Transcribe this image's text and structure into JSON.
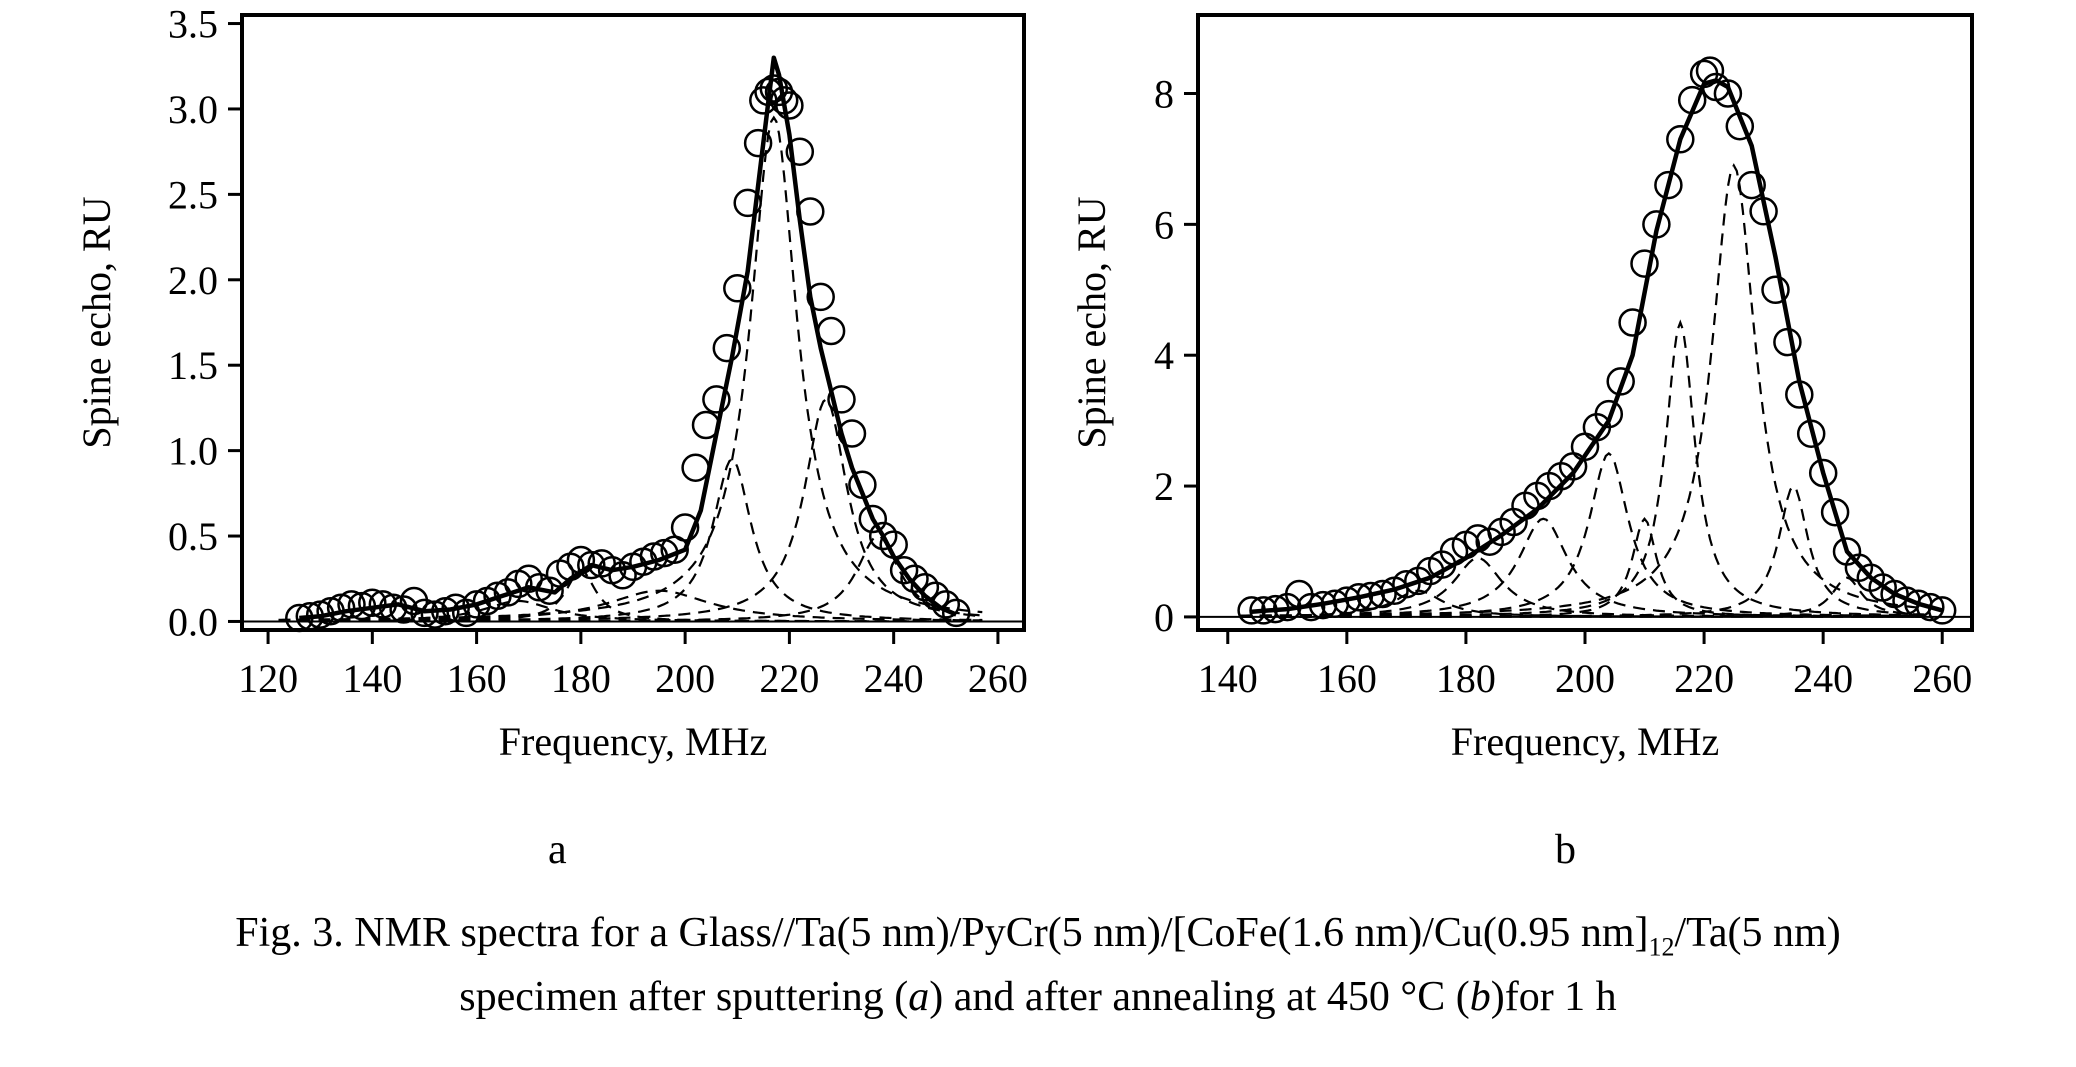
{
  "chart_data": [
    {
      "type": "scatter",
      "panel_label": "a",
      "xlabel": "Frequency, MHz",
      "ylabel": "Spine echo, RU",
      "xlim": [
        115,
        265
      ],
      "ylim": [
        -0.05,
        3.55
      ],
      "xticks": [
        120,
        140,
        160,
        180,
        200,
        220,
        240,
        260
      ],
      "yticks": [
        0.0,
        0.5,
        1.0,
        1.5,
        2.0,
        2.5,
        3.0,
        3.5
      ],
      "ytick_labels": [
        "0.0",
        "0.5",
        "1.0",
        "1.5",
        "2.0",
        "2.5",
        "3.0",
        "3.5"
      ],
      "grid": false,
      "points": {
        "marker": "open-circle",
        "x": [
          126,
          128,
          130,
          132,
          134,
          136,
          138,
          140,
          142,
          144,
          146,
          148,
          150,
          152,
          154,
          156,
          158,
          160,
          162,
          164,
          166,
          168,
          170,
          172,
          174,
          176,
          178,
          180,
          182,
          184,
          186,
          188,
          190,
          192,
          194,
          196,
          198,
          200,
          202,
          204,
          206,
          208,
          210,
          212,
          214,
          215,
          216,
          217,
          218,
          219,
          220,
          222,
          224,
          226,
          228,
          230,
          232,
          234,
          236,
          238,
          240,
          242,
          244,
          246,
          248,
          250,
          252
        ],
        "y": [
          0.02,
          0.03,
          0.04,
          0.06,
          0.08,
          0.1,
          0.09,
          0.11,
          0.1,
          0.08,
          0.07,
          0.12,
          0.05,
          0.04,
          0.06,
          0.08,
          0.05,
          0.1,
          0.12,
          0.15,
          0.17,
          0.22,
          0.25,
          0.2,
          0.18,
          0.28,
          0.32,
          0.36,
          0.33,
          0.34,
          0.3,
          0.27,
          0.32,
          0.35,
          0.38,
          0.4,
          0.42,
          0.55,
          0.9,
          1.15,
          1.3,
          1.6,
          1.95,
          2.45,
          2.8,
          3.05,
          3.1,
          3.12,
          3.1,
          3.05,
          3.02,
          2.75,
          2.4,
          1.9,
          1.7,
          1.3,
          1.1,
          0.8,
          0.6,
          0.5,
          0.45,
          0.3,
          0.25,
          0.2,
          0.15,
          0.1,
          0.05
        ]
      },
      "fit_line": {
        "style": "solid",
        "x": [
          126,
          130,
          135,
          140,
          145,
          150,
          155,
          160,
          165,
          170,
          175,
          178,
          182,
          186,
          190,
          195,
          200,
          203,
          206,
          209,
          212,
          214,
          216,
          217,
          218,
          220,
          222,
          224,
          226,
          228,
          230,
          232,
          234,
          236,
          238,
          240,
          243,
          246,
          249,
          252
        ],
        "y": [
          0.02,
          0.03,
          0.06,
          0.08,
          0.1,
          0.06,
          0.07,
          0.1,
          0.15,
          0.2,
          0.17,
          0.25,
          0.33,
          0.3,
          0.32,
          0.36,
          0.42,
          0.65,
          1.1,
          1.55,
          2.05,
          2.55,
          3.05,
          3.3,
          3.2,
          2.85,
          2.35,
          1.9,
          1.6,
          1.35,
          1.1,
          0.9,
          0.75,
          0.6,
          0.5,
          0.38,
          0.25,
          0.15,
          0.08,
          0.04
        ]
      },
      "components": [
        {
          "style": "dashed",
          "center": 217,
          "amplitude": 2.95,
          "width": 5.5
        },
        {
          "style": "dashed",
          "center": 209,
          "amplitude": 0.95,
          "width": 4.5
        },
        {
          "style": "dashed",
          "center": 227,
          "amplitude": 1.3,
          "width": 5.0
        },
        {
          "style": "dashed",
          "center": 237,
          "amplitude": 0.5,
          "width": 5.0
        },
        {
          "style": "dashed",
          "center": 195,
          "amplitude": 0.18,
          "width": 12.0
        },
        {
          "style": "dashed",
          "center": 180,
          "amplitude": 0.3,
          "width": 3.5
        },
        {
          "style": "dashed",
          "center": 168,
          "amplitude": 0.12,
          "width": 8.0
        }
      ]
    },
    {
      "type": "scatter",
      "panel_label": "b",
      "xlabel": "Frequency, MHz",
      "ylabel": "Spine echo, RU",
      "xlim": [
        135,
        265
      ],
      "ylim": [
        -0.2,
        9.2
      ],
      "xticks": [
        140,
        160,
        180,
        200,
        220,
        240,
        260
      ],
      "yticks": [
        0,
        2,
        4,
        6,
        8
      ],
      "ytick_labels": [
        "0",
        "2",
        "4",
        "6",
        "8"
      ],
      "grid": false,
      "points": {
        "marker": "open-circle",
        "x": [
          144,
          146,
          148,
          150,
          152,
          154,
          156,
          158,
          160,
          162,
          164,
          166,
          168,
          170,
          172,
          174,
          176,
          178,
          180,
          182,
          184,
          186,
          188,
          190,
          192,
          194,
          196,
          198,
          200,
          202,
          204,
          206,
          208,
          210,
          212,
          214,
          216,
          218,
          220,
          221,
          222,
          224,
          226,
          228,
          230,
          232,
          234,
          236,
          238,
          240,
          242,
          244,
          246,
          248,
          250,
          252,
          254,
          256,
          258,
          260
        ],
        "y": [
          0.1,
          0.1,
          0.12,
          0.15,
          0.35,
          0.15,
          0.18,
          0.2,
          0.25,
          0.3,
          0.32,
          0.35,
          0.4,
          0.5,
          0.55,
          0.7,
          0.8,
          1.0,
          1.1,
          1.2,
          1.15,
          1.3,
          1.45,
          1.7,
          1.85,
          2.0,
          2.15,
          2.3,
          2.6,
          2.9,
          3.1,
          3.6,
          4.5,
          5.4,
          6.0,
          6.6,
          7.3,
          7.9,
          8.3,
          8.35,
          8.1,
          8.0,
          7.5,
          6.6,
          6.2,
          5.0,
          4.2,
          3.4,
          2.8,
          2.2,
          1.6,
          1.0,
          0.75,
          0.6,
          0.45,
          0.35,
          0.25,
          0.2,
          0.15,
          0.1
        ]
      },
      "fit_line": {
        "style": "solid",
        "x": [
          144,
          150,
          156,
          162,
          168,
          174,
          180,
          186,
          192,
          198,
          204,
          208,
          212,
          216,
          220,
          222,
          224,
          228,
          232,
          236,
          240,
          244,
          248,
          252,
          256,
          260
        ],
        "y": [
          0.08,
          0.12,
          0.2,
          0.3,
          0.42,
          0.6,
          0.9,
          1.25,
          1.65,
          2.2,
          3.0,
          4.0,
          5.9,
          7.3,
          8.15,
          8.2,
          8.1,
          7.2,
          5.5,
          3.6,
          2.2,
          1.0,
          0.6,
          0.35,
          0.2,
          0.1
        ]
      },
      "components": [
        {
          "style": "dashed",
          "center": 225,
          "amplitude": 6.9,
          "width": 4.5
        },
        {
          "style": "dashed",
          "center": 216,
          "amplitude": 4.5,
          "width": 3.0
        },
        {
          "style": "dashed",
          "center": 235,
          "amplitude": 2.0,
          "width": 3.0
        },
        {
          "style": "dashed",
          "center": 204,
          "amplitude": 2.5,
          "width": 4.0
        },
        {
          "style": "dashed",
          "center": 210,
          "amplitude": 1.5,
          "width": 2.5
        },
        {
          "style": "dashed",
          "center": 193,
          "amplitude": 1.5,
          "width": 5.0
        },
        {
          "style": "dashed",
          "center": 182,
          "amplitude": 0.9,
          "width": 5.0
        },
        {
          "style": "dashed",
          "center": 172,
          "amplitude": 0.4,
          "width": 5.0
        },
        {
          "style": "dashed",
          "center": 244,
          "amplitude": 0.6,
          "width": 3.0
        }
      ]
    }
  ],
  "caption": {
    "line1_main": "Fig. 3. NMR spectra for a Glass//Ta(5 nm)/PyCr(5 nm)/[CoFe(1.6 nm)/Cu(0.95 nm]",
    "line1_sub": "12",
    "line1_tail": "/Ta(5 nm)",
    "line2_a": "specimen after sputtering (",
    "line2_a_letter": "a",
    "line2_b": ") and after annealing at 450 °C (",
    "line2_b_letter": "b",
    "line2_c": ")for 1 h"
  }
}
